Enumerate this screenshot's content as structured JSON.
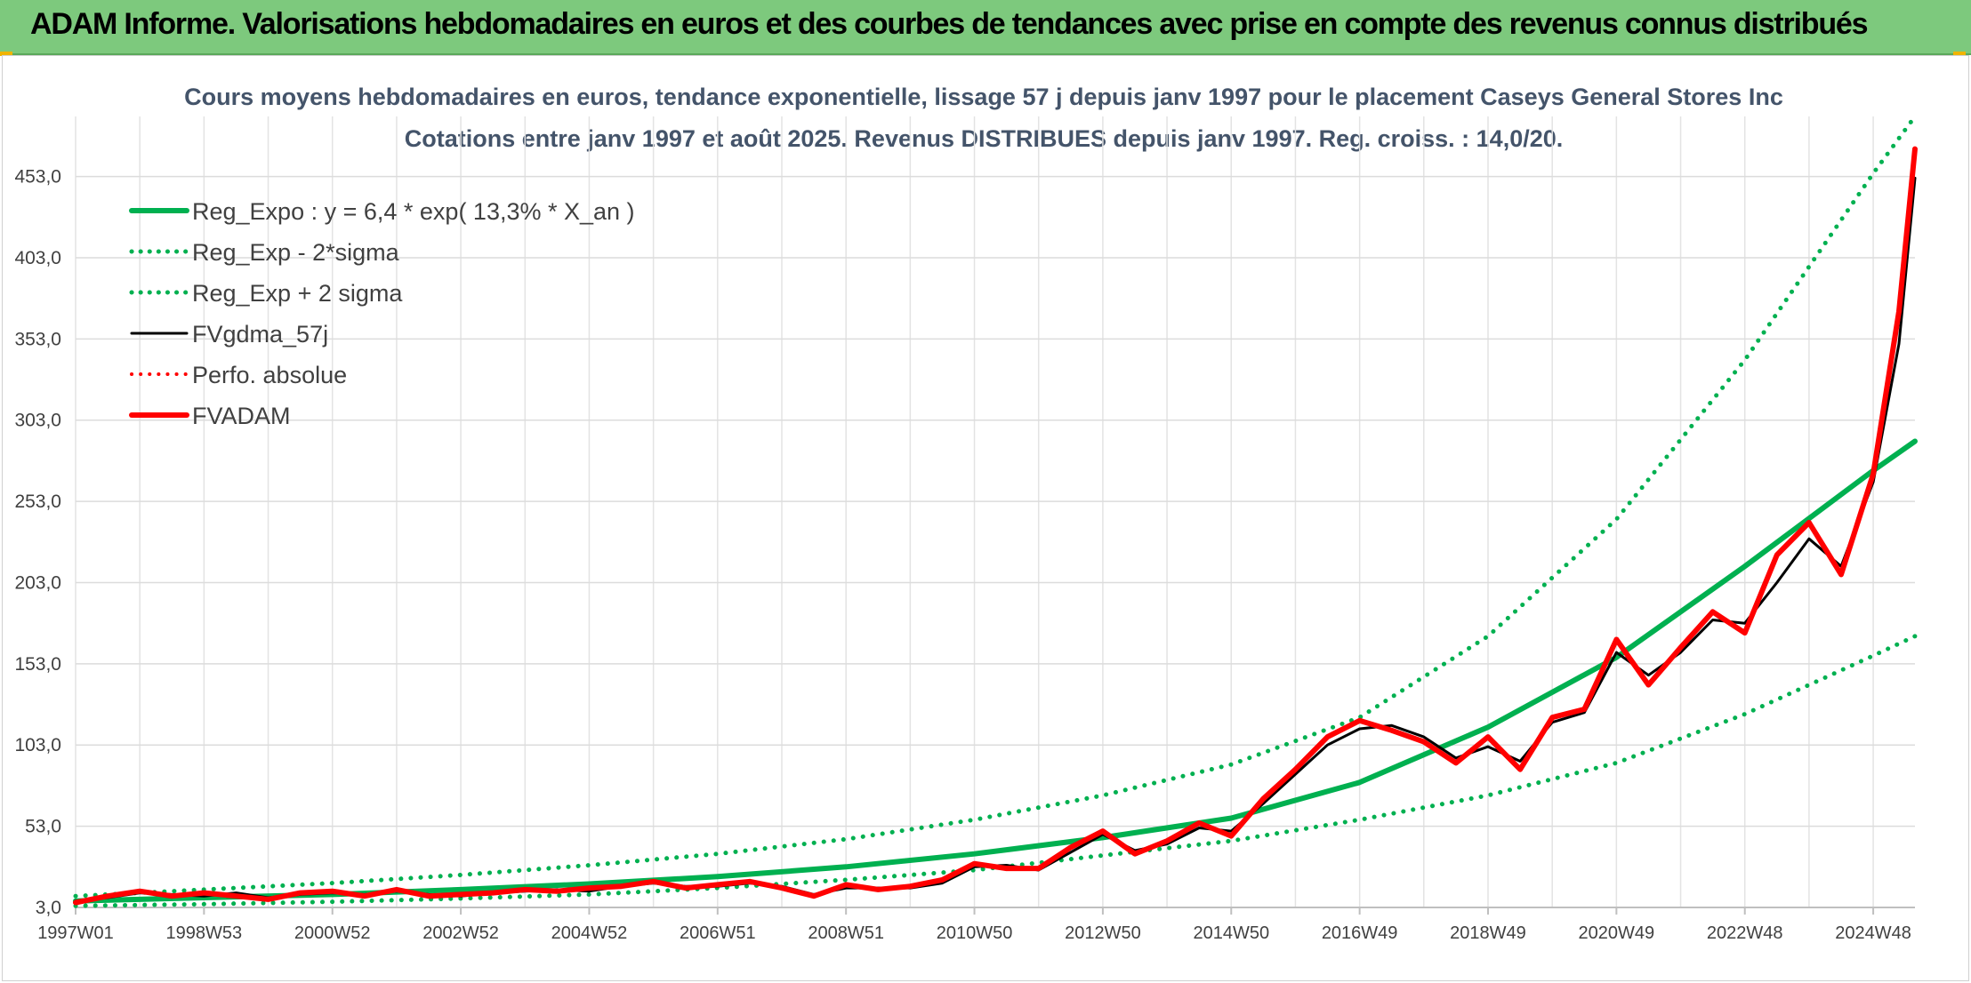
{
  "page": {
    "banner_title": "ADAM Informe. Valorisations hebdomadaires en euros et des courbes de tendances avec prise en compte des revenus connus distribués",
    "colors": {
      "banner_bg": "#7dc97d",
      "accent_corner": "#f0b400"
    }
  },
  "chart_data": {
    "type": "line",
    "title": "Cours moyens hebdomadaires en euros, tendance exponentielle, lissage 57 j depuis janv 1997 pour le placement Caseys General Stores Inc",
    "subtitle": "Cotations entre janv 1997 et août 2025. Revenus DISTRIBUES depuis janv 1997. Reg. croiss. : 14,0/20.",
    "xlabel": "",
    "ylabel": "",
    "x_range": [
      1997.0,
      2025.65
    ],
    "ylim": [
      3,
      490
    ],
    "y_ticks": [
      "3,0",
      "53,0",
      "103,0",
      "153,0",
      "203,0",
      "253,0",
      "303,0",
      "353,0",
      "403,0",
      "453,0"
    ],
    "x_ticks": [
      {
        "label": "1997W01",
        "x": 1997.0
      },
      {
        "label": "1998W53",
        "x": 1999.0
      },
      {
        "label": "2000W52",
        "x": 2001.0
      },
      {
        "label": "2002W52",
        "x": 2003.0
      },
      {
        "label": "2004W52",
        "x": 2005.0
      },
      {
        "label": "2006W51",
        "x": 2007.0
      },
      {
        "label": "2008W51",
        "x": 2009.0
      },
      {
        "label": "2010W50",
        "x": 2011.0
      },
      {
        "label": "2012W50",
        "x": 2013.0
      },
      {
        "label": "2014W50",
        "x": 2015.0
      },
      {
        "label": "2016W49",
        "x": 2017.0
      },
      {
        "label": "2018W49",
        "x": 2019.0
      },
      {
        "label": "2020W49",
        "x": 2021.0
      },
      {
        "label": "2022W48",
        "x": 2023.0
      },
      {
        "label": "2024W48",
        "x": 2025.0
      }
    ],
    "grid": true,
    "legend_position": "top-left",
    "series": [
      {
        "name": "Reg_Expo : y = 6,4 * exp( 13,3% *  X_an )",
        "color": "#00b050",
        "style": "solid",
        "width": 6,
        "x": [
          1997,
          1999,
          2001,
          2003,
          2005,
          2007,
          2009,
          2011,
          2013,
          2015,
          2017,
          2019,
          2021,
          2023,
          2025,
          2025.65
        ],
        "y": [
          7,
          9,
          11,
          14,
          17.5,
          22,
          28,
          36,
          46,
          58,
          80,
          114,
          157,
          213,
          272,
          290
        ]
      },
      {
        "name": "Reg_Exp - 2*sigma",
        "color": "#00b050",
        "style": "dotted",
        "width": 5,
        "x": [
          1997,
          1999,
          2001,
          2003,
          2005,
          2007,
          2009,
          2011,
          2013,
          2015,
          2017,
          2019,
          2021,
          2023,
          2025,
          2025.65
        ],
        "y": [
          4,
          5,
          6.5,
          8.5,
          11,
          15,
          20,
          26,
          35,
          44,
          57,
          72,
          92,
          122,
          158,
          170
        ]
      },
      {
        "name": "Reg_Exp + 2 sigma",
        "color": "#00b050",
        "style": "dotted",
        "width": 5,
        "x": [
          1997,
          1999,
          2001,
          2003,
          2005,
          2007,
          2009,
          2011,
          2013,
          2015,
          2017,
          2019,
          2021,
          2023,
          2025,
          2025.65
        ],
        "y": [
          10,
          14,
          18,
          23,
          29,
          36,
          45,
          57,
          72,
          91,
          120,
          170,
          242,
          340,
          455,
          490
        ]
      },
      {
        "name": "FVgdma_57j",
        "color": "#000000",
        "style": "solid",
        "width": 3,
        "x": [
          1997.0,
          1997.5,
          1998.0,
          1998.5,
          1999.0,
          1999.5,
          2000.0,
          2000.5,
          2001.0,
          2001.5,
          2002.0,
          2002.5,
          2003.0,
          2003.5,
          2004.0,
          2004.5,
          2005.0,
          2005.5,
          2006.0,
          2006.5,
          2007.0,
          2007.5,
          2008.0,
          2008.5,
          2009.0,
          2009.5,
          2010.0,
          2010.5,
          2011.0,
          2011.5,
          2012.0,
          2012.5,
          2013.0,
          2013.5,
          2014.0,
          2014.5,
          2015.0,
          2015.5,
          2016.0,
          2016.5,
          2017.0,
          2017.5,
          2018.0,
          2018.5,
          2019.0,
          2019.5,
          2020.0,
          2020.5,
          2021.0,
          2021.5,
          2022.0,
          2022.5,
          2023.0,
          2023.5,
          2024.0,
          2024.5,
          2025.0,
          2025.4,
          2025.65
        ],
        "y": [
          7,
          9,
          12,
          11,
          10,
          12,
          9,
          11,
          12,
          11,
          13,
          11,
          10,
          12,
          13,
          14,
          13,
          16,
          18,
          16,
          16,
          18,
          16,
          11,
          15,
          15,
          15,
          18,
          28,
          29,
          26,
          37,
          48,
          38,
          42,
          52,
          50,
          67,
          85,
          103,
          113,
          115,
          108,
          95,
          102,
          93,
          117,
          123,
          160,
          146,
          160,
          180,
          178,
          203,
          230,
          213,
          265,
          350,
          452
        ]
      },
      {
        "name": "Perfo. absolue",
        "color": "#ff0000",
        "style": "dotted",
        "width": 3,
        "x": [],
        "y": []
      },
      {
        "name": "FVADAM",
        "color": "#ff0000",
        "style": "solid",
        "width": 6,
        "x": [
          1997.0,
          1997.5,
          1998.0,
          1998.5,
          1999.0,
          1999.5,
          2000.0,
          2000.5,
          2001.0,
          2001.5,
          2002.0,
          2002.5,
          2003.0,
          2003.5,
          2004.0,
          2004.5,
          2005.0,
          2005.5,
          2006.0,
          2006.5,
          2007.0,
          2007.5,
          2008.0,
          2008.5,
          2009.0,
          2009.5,
          2010.0,
          2010.5,
          2011.0,
          2011.5,
          2012.0,
          2012.5,
          2013.0,
          2013.5,
          2014.0,
          2014.5,
          2015.0,
          2015.5,
          2016.0,
          2016.5,
          2017.0,
          2017.5,
          2018.0,
          2018.5,
          2019.0,
          2019.5,
          2020.0,
          2020.5,
          2021.0,
          2021.5,
          2022.0,
          2022.5,
          2023.0,
          2023.5,
          2024.0,
          2024.5,
          2025.0,
          2025.4,
          2025.65
        ],
        "y": [
          6,
          10,
          13,
          10,
          12,
          10,
          8,
          12,
          13,
          10,
          14,
          10,
          11,
          12,
          14,
          13,
          15,
          16,
          19,
          15,
          17,
          19,
          15,
          10,
          17,
          14,
          16,
          20,
          30,
          27,
          27,
          40,
          50,
          36,
          44,
          55,
          47,
          70,
          88,
          108,
          118,
          112,
          105,
          92,
          108,
          88,
          120,
          125,
          168,
          140,
          163,
          185,
          172,
          220,
          240,
          208,
          270,
          370,
          470
        ]
      }
    ]
  }
}
